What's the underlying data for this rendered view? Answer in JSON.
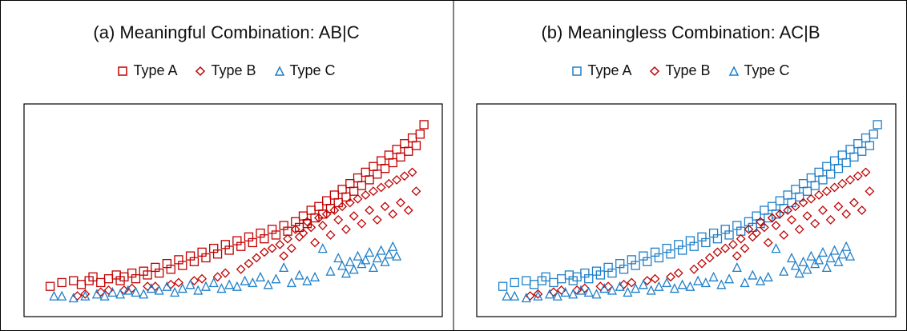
{
  "colors": {
    "red": "#C00000",
    "blue": "#1F7FC8",
    "frame": "#000000"
  },
  "panels": [
    {
      "title": "(a) Meaningful Combination: AB|C",
      "legend": [
        {
          "label": "Type A",
          "marker": "square",
          "color": "#C00000"
        },
        {
          "label": "Type B",
          "marker": "diamond",
          "color": "#C00000"
        },
        {
          "label": "Type C",
          "marker": "triangle",
          "color": "#1F7FC8"
        }
      ]
    },
    {
      "title": "(b) Meaningless Combination: AC|B",
      "legend": [
        {
          "label": "Type A",
          "marker": "square",
          "color": "#1F7FC8"
        },
        {
          "label": "Type B",
          "marker": "diamond",
          "color": "#C00000"
        },
        {
          "label": "Type C",
          "marker": "triangle",
          "color": "#1F7FC8"
        }
      ]
    }
  ],
  "chart_data": [
    {
      "type": "scatter",
      "title": "(a) Meaningful Combination: AB|C",
      "xlabel": "",
      "ylabel": "",
      "xlim": [
        0,
        100
      ],
      "ylim": [
        0,
        100
      ],
      "axis_ticks": "none",
      "series": [
        {
          "name": "Type A",
          "marker": "square",
          "color": "#C00000",
          "x": [
            3,
            6,
            9,
            11,
            13,
            14,
            16,
            18,
            20,
            21,
            22,
            24,
            25,
            27,
            28,
            30,
            31,
            33,
            34,
            36,
            37,
            39,
            40,
            42,
            43,
            45,
            46,
            48,
            49,
            51,
            52,
            54,
            55,
            57,
            58,
            60,
            61,
            63,
            64,
            66,
            67,
            68,
            69,
            70,
            71,
            72,
            73,
            74,
            75,
            76,
            77,
            78,
            79,
            80,
            81,
            82,
            83,
            84,
            85,
            86,
            87,
            88,
            89,
            90,
            91,
            92,
            93,
            94,
            95,
            96,
            97,
            98,
            99
          ],
          "y": [
            10,
            12,
            13,
            11,
            13,
            15,
            12,
            14,
            16,
            13,
            15,
            17,
            14,
            18,
            16,
            20,
            17,
            22,
            19,
            24,
            21,
            26,
            23,
            28,
            25,
            30,
            27,
            32,
            29,
            34,
            31,
            36,
            33,
            38,
            35,
            40,
            37,
            42,
            39,
            44,
            41,
            47,
            43,
            50,
            46,
            52,
            48,
            55,
            51,
            58,
            54,
            61,
            57,
            64,
            60,
            67,
            63,
            70,
            66,
            73,
            69,
            76,
            72,
            79,
            75,
            82,
            78,
            85,
            81,
            88,
            84,
            90,
            95
          ]
        },
        {
          "name": "Type B",
          "marker": "diamond",
          "color": "#C00000",
          "x": [
            10,
            12,
            16,
            18,
            22,
            24,
            28,
            30,
            34,
            36,
            40,
            42,
            46,
            48,
            52,
            54,
            56,
            58,
            60,
            62,
            63,
            64,
            65,
            66,
            67,
            68,
            69,
            70,
            71,
            72,
            73,
            74,
            75,
            76,
            77,
            78,
            79,
            80,
            81,
            82,
            83,
            84,
            85,
            86,
            87,
            88,
            89,
            90,
            91,
            92,
            93,
            94,
            95,
            96,
            97
          ],
          "y": [
            5,
            6,
            7,
            8,
            8,
            9,
            10,
            10,
            11,
            12,
            13,
            14,
            15,
            17,
            19,
            22,
            25,
            28,
            30,
            32,
            26,
            35,
            30,
            40,
            36,
            38,
            44,
            41,
            33,
            46,
            42,
            48,
            37,
            50,
            45,
            52,
            40,
            54,
            47,
            56,
            43,
            58,
            50,
            60,
            45,
            62,
            52,
            64,
            48,
            66,
            54,
            68,
            50,
            70,
            60
          ]
        },
        {
          "name": "Type C",
          "marker": "triangle",
          "color": "#1F7FC8",
          "x": [
            4,
            6,
            9,
            12,
            15,
            17,
            19,
            21,
            23,
            25,
            27,
            29,
            31,
            33,
            35,
            37,
            39,
            41,
            43,
            45,
            47,
            49,
            51,
            53,
            55,
            57,
            59,
            61,
            63,
            65,
            67,
            69,
            71,
            73,
            75,
            77,
            78,
            79,
            80,
            81,
            82,
            83,
            84,
            85,
            86,
            87,
            88,
            89,
            90,
            91,
            92
          ],
          "y": [
            5,
            5,
            4,
            5,
            6,
            5,
            7,
            6,
            8,
            7,
            6,
            9,
            8,
            10,
            7,
            9,
            11,
            8,
            10,
            12,
            9,
            11,
            10,
            13,
            12,
            15,
            11,
            14,
            20,
            12,
            16,
            13,
            15,
            30,
            18,
            25,
            21,
            17,
            23,
            19,
            26,
            22,
            24,
            28,
            20,
            25,
            29,
            23,
            27,
            31,
            26
          ]
        }
      ]
    },
    {
      "type": "scatter",
      "title": "(b) Meaningless Combination: AC|B",
      "xlabel": "",
      "ylabel": "",
      "xlim": [
        0,
        100
      ],
      "ylim": [
        0,
        100
      ],
      "axis_ticks": "none",
      "series": [
        {
          "name": "Type A",
          "marker": "square",
          "color": "#1F7FC8",
          "x": [
            3,
            6,
            9,
            11,
            13,
            14,
            16,
            18,
            20,
            21,
            22,
            24,
            25,
            27,
            28,
            30,
            31,
            33,
            34,
            36,
            37,
            39,
            40,
            42,
            43,
            45,
            46,
            48,
            49,
            51,
            52,
            54,
            55,
            57,
            58,
            60,
            61,
            63,
            64,
            66,
            67,
            68,
            69,
            70,
            71,
            72,
            73,
            74,
            75,
            76,
            77,
            78,
            79,
            80,
            81,
            82,
            83,
            84,
            85,
            86,
            87,
            88,
            89,
            90,
            91,
            92,
            93,
            94,
            95,
            96,
            97,
            98,
            99
          ],
          "y": [
            10,
            12,
            13,
            11,
            13,
            15,
            12,
            14,
            16,
            13,
            15,
            17,
            14,
            18,
            16,
            20,
            17,
            22,
            19,
            24,
            21,
            26,
            23,
            28,
            25,
            30,
            27,
            32,
            29,
            34,
            31,
            36,
            33,
            38,
            35,
            40,
            37,
            42,
            39,
            44,
            41,
            47,
            43,
            50,
            46,
            52,
            48,
            55,
            51,
            58,
            54,
            61,
            57,
            64,
            60,
            67,
            63,
            70,
            66,
            73,
            69,
            76,
            72,
            79,
            75,
            82,
            78,
            85,
            81,
            88,
            84,
            90,
            95
          ]
        },
        {
          "name": "Type B",
          "marker": "diamond",
          "color": "#C00000",
          "x": [
            10,
            12,
            16,
            18,
            22,
            24,
            28,
            30,
            34,
            36,
            40,
            42,
            46,
            48,
            52,
            54,
            56,
            58,
            60,
            62,
            63,
            64,
            65,
            66,
            67,
            68,
            69,
            70,
            71,
            72,
            73,
            74,
            75,
            76,
            77,
            78,
            79,
            80,
            81,
            82,
            83,
            84,
            85,
            86,
            87,
            88,
            89,
            90,
            91,
            92,
            93,
            94,
            95,
            96,
            97
          ],
          "y": [
            5,
            6,
            7,
            8,
            8,
            9,
            10,
            10,
            11,
            12,
            13,
            14,
            15,
            17,
            19,
            22,
            25,
            28,
            30,
            32,
            26,
            35,
            30,
            40,
            36,
            38,
            44,
            41,
            33,
            46,
            42,
            48,
            37,
            50,
            45,
            52,
            40,
            54,
            47,
            56,
            43,
            58,
            50,
            60,
            45,
            62,
            52,
            64,
            48,
            66,
            54,
            68,
            50,
            70,
            60
          ]
        },
        {
          "name": "Type C",
          "marker": "triangle",
          "color": "#1F7FC8",
          "x": [
            4,
            6,
            9,
            12,
            15,
            17,
            19,
            21,
            23,
            25,
            27,
            29,
            31,
            33,
            35,
            37,
            39,
            41,
            43,
            45,
            47,
            49,
            51,
            53,
            55,
            57,
            59,
            61,
            63,
            65,
            67,
            69,
            71,
            73,
            75,
            77,
            78,
            79,
            80,
            81,
            82,
            83,
            84,
            85,
            86,
            87,
            88,
            89,
            90,
            91,
            92
          ],
          "y": [
            5,
            5,
            4,
            5,
            6,
            5,
            7,
            6,
            8,
            7,
            6,
            9,
            8,
            10,
            7,
            9,
            11,
            8,
            10,
            12,
            9,
            11,
            10,
            13,
            12,
            15,
            11,
            14,
            20,
            12,
            16,
            13,
            15,
            30,
            18,
            25,
            21,
            17,
            23,
            19,
            26,
            22,
            24,
            28,
            20,
            25,
            29,
            23,
            27,
            31,
            26
          ]
        }
      ]
    }
  ]
}
